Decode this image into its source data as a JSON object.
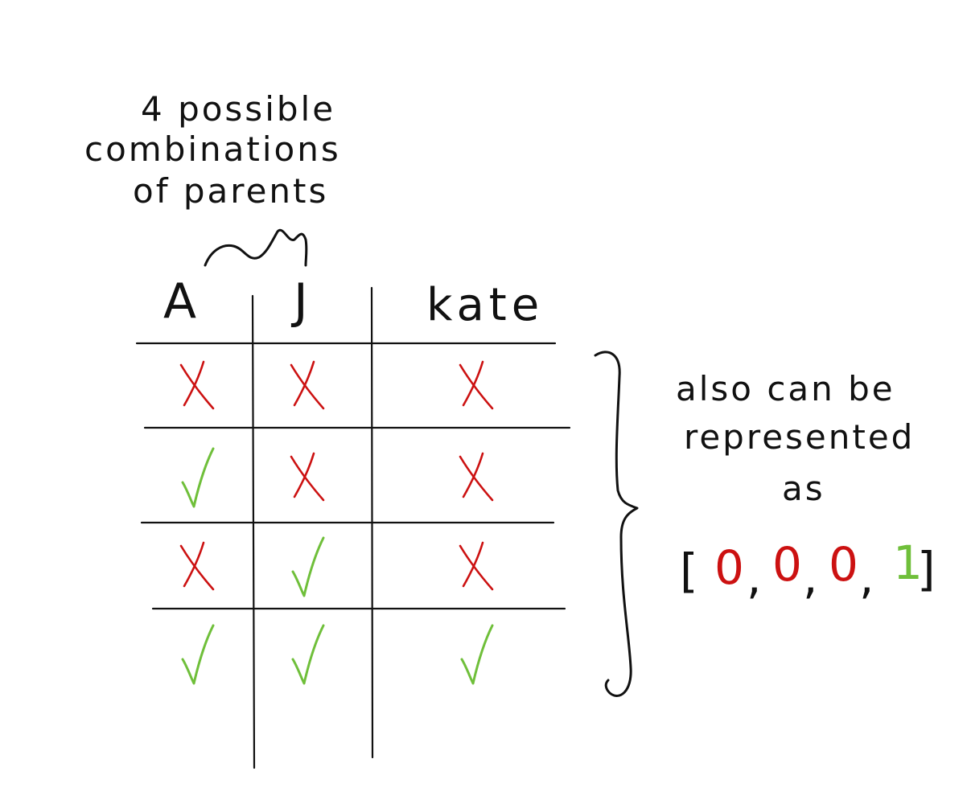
{
  "annotation_top": [
    "4 possible",
    "combinations",
    "of parents"
  ],
  "headers": {
    "a": "A",
    "j": "J",
    "kate": "kate"
  },
  "rows": [
    {
      "a": false,
      "j": false,
      "kate": false
    },
    {
      "a": true,
      "j": false,
      "kate": false
    },
    {
      "a": false,
      "j": true,
      "kate": false
    },
    {
      "a": true,
      "j": true,
      "kate": true
    }
  ],
  "annotation_right": [
    "also can be",
    "represented",
    "as"
  ],
  "vector": {
    "open": "[",
    "close": "]",
    "separator": ",",
    "values": [
      "0",
      "0",
      "0",
      "1"
    ]
  },
  "colors": {
    "false": "#cc1111",
    "true": "#6fbf3a",
    "ink": "#111111"
  },
  "icons": {
    "false": "x-mark-icon",
    "true": "check-mark-icon"
  }
}
